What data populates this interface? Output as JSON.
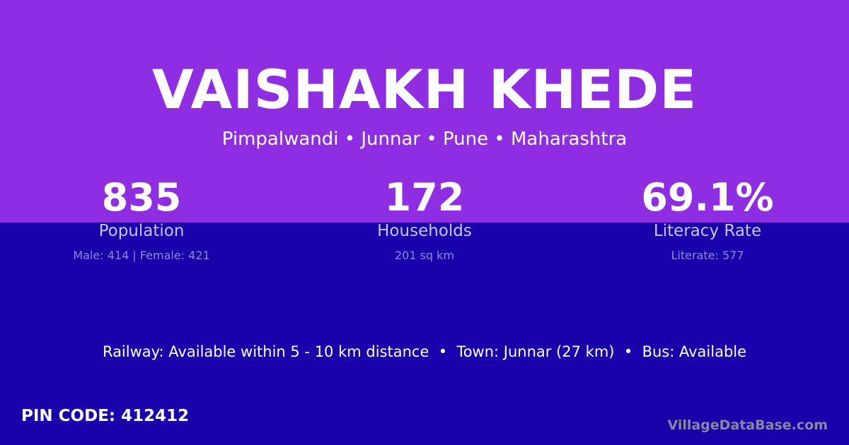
{
  "title": "VAISHAKH KHEDE",
  "location": "Pimpalwandi • Junnar • Pune • Maharashtra",
  "stats": [
    {
      "value": "835",
      "label": "Population",
      "sub": "Male: 414 | Female: 421"
    },
    {
      "value": "172",
      "label": "Households",
      "sub": "201 sq km"
    },
    {
      "value": "69.1%",
      "label": "Literacy Rate",
      "sub": "Literate: 577"
    }
  ],
  "info": "Railway: Available within 5 - 10 km distance  •  Town: Junnar (27 km)  •  Bus: Available",
  "pin": "PIN CODE: 412412",
  "watermark": "VillageDataBase.com",
  "colors": {
    "top": "#8e2de2",
    "bottom": "#1a00aa"
  }
}
